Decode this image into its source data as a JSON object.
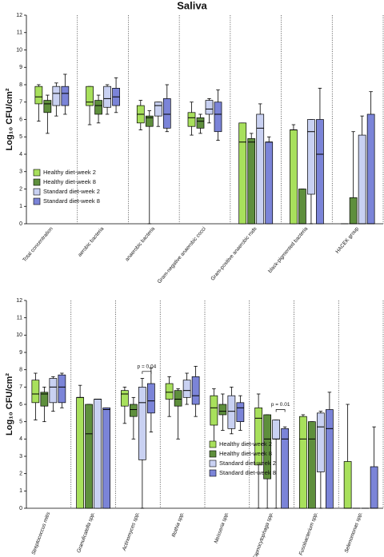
{
  "chart_data": [
    {
      "type": "box",
      "title": "Saliva",
      "y_label": "Log₁₀ CFU/cm²",
      "ylim": [
        0,
        12
      ],
      "yticks": [
        0,
        1,
        2,
        3,
        4,
        5,
        6,
        7,
        8,
        9,
        10,
        11,
        12
      ],
      "legend_position": "lower left",
      "italic_categories": false,
      "categories": [
        "Total concentration",
        "aerobic bacteria",
        "anaerobic bacteria",
        "Gram-negative anaerobic cocci",
        "Gram-positive anaerobic rods",
        "black-pigmented bacteria",
        "HACEK group"
      ],
      "series": [
        {
          "name": "Healthy diet-week 2",
          "color": "#a8e05c",
          "values": [
            {
              "min": 5.9,
              "q1": 6.9,
              "median": 7.3,
              "q3": 7.9,
              "max": 8.0
            },
            {
              "min": 5.7,
              "q1": 6.8,
              "median": 7.0,
              "q3": 7.9,
              "max": 7.9
            },
            {
              "min": 5.4,
              "q1": 5.8,
              "median": 6.3,
              "q3": 6.8,
              "max": 7.1
            },
            {
              "min": 5.1,
              "q1": 5.6,
              "median": 6.1,
              "q3": 6.4,
              "max": 7.0
            },
            {
              "min": 0,
              "q1": 0,
              "median": 4.7,
              "q3": 5.8,
              "max": 5.8
            },
            {
              "min": 0,
              "q1": 0,
              "median": 5.4,
              "q3": 5.4,
              "max": 5.7
            },
            {
              "min": 0,
              "q1": 0,
              "median": 0,
              "q3": 0,
              "max": 0
            }
          ]
        },
        {
          "name": "Healthy diet-week 8",
          "color": "#5e8f3c",
          "values": [
            {
              "min": 5.2,
              "q1": 6.4,
              "median": 6.9,
              "q3": 7.1,
              "max": 7.4
            },
            {
              "min": 5.8,
              "q1": 6.3,
              "median": 6.8,
              "q3": 7.1,
              "max": 7.4
            },
            {
              "min": 0,
              "q1": 5.6,
              "median": 6.1,
              "q3": 6.2,
              "max": 6.5
            },
            {
              "min": 5.2,
              "q1": 5.5,
              "median": 5.9,
              "q3": 6.1,
              "max": 6.3
            },
            {
              "min": 0,
              "q1": 0,
              "median": 4.7,
              "q3": 4.9,
              "max": 5.2
            },
            {
              "min": 0,
              "q1": 0,
              "median": 0,
              "q3": 2.0,
              "max": 2.0
            },
            {
              "min": 0,
              "q1": 0,
              "median": 0,
              "q3": 1.5,
              "max": 5.3
            }
          ]
        },
        {
          "name": "Standard diet-week 2",
          "color": "#c9d1f2",
          "values": [
            {
              "min": 6.2,
              "q1": 6.8,
              "median": 7.5,
              "q3": 7.9,
              "max": 8.1
            },
            {
              "min": 6.3,
              "q1": 6.7,
              "median": 7.2,
              "q3": 7.9,
              "max": 8.0
            },
            {
              "min": 5.6,
              "q1": 6.2,
              "median": 6.8,
              "q3": 7.0,
              "max": 7.0
            },
            {
              "min": 5.8,
              "q1": 6.3,
              "median": 6.6,
              "q3": 7.1,
              "max": 7.2
            },
            {
              "min": 0,
              "q1": 0,
              "median": 5.5,
              "q3": 6.3,
              "max": 6.9
            },
            {
              "min": 0,
              "q1": 1.7,
              "median": 5.3,
              "q3": 6.0,
              "max": 6.0
            },
            {
              "min": 0,
              "q1": 0,
              "median": 0,
              "q3": 5.1,
              "max": 6.2
            }
          ]
        },
        {
          "name": "Standard diet-week 8",
          "color": "#7b84d8",
          "values": [
            {
              "min": 6.3,
              "q1": 6.8,
              "median": 7.5,
              "q3": 7.9,
              "max": 8.6
            },
            {
              "min": 6.4,
              "q1": 6.8,
              "median": 7.3,
              "q3": 7.8,
              "max": 8.4
            },
            {
              "min": 5.3,
              "q1": 5.5,
              "median": 6.3,
              "q3": 7.2,
              "max": 8.0
            },
            {
              "min": 4.8,
              "q1": 5.3,
              "median": 6.3,
              "q3": 7.0,
              "max": 7.7
            },
            {
              "min": 0,
              "q1": 0,
              "median": 4.7,
              "q3": 4.7,
              "max": 5.0
            },
            {
              "min": 0,
              "q1": 0,
              "median": 4.0,
              "q3": 6.0,
              "max": 7.8
            },
            {
              "min": 0,
              "q1": 0,
              "median": 0,
              "q3": 6.3,
              "max": 7.6
            }
          ]
        }
      ]
    },
    {
      "type": "box",
      "y_label": "Log₁₀ CFU/cm²",
      "ylim": [
        0,
        12
      ],
      "yticks": [
        0,
        1,
        2,
        3,
        4,
        5,
        6,
        7,
        8,
        9,
        10,
        11,
        12
      ],
      "legend_position": "lower center",
      "italic_categories": true,
      "categories": [
        "Streptococcus mitis",
        "Granulicatella spp.",
        "Actinomyces spp.",
        "Rothia spp.",
        "Neisseria spp.",
        "Capnocytophaga spp.",
        "Fusobacterium spp.",
        "Selenomonas spp."
      ],
      "annotations": [
        {
          "text": "p = 0.04",
          "category": 2,
          "from": 2,
          "to": 3,
          "y": 7.9
        },
        {
          "text": "p = 0.01",
          "category": 5,
          "from": 2,
          "to": 3,
          "y": 5.7
        }
      ],
      "series": [
        {
          "name": "Healthy diet-week 2",
          "color": "#a8e05c",
          "values": [
            {
              "min": 5.1,
              "q1": 6.1,
              "median": 6.6,
              "q3": 7.4,
              "max": 7.8
            },
            {
              "min": 0,
              "q1": 0,
              "median": 6.4,
              "q3": 6.4,
              "max": 7.1
            },
            {
              "min": 4.9,
              "q1": 5.9,
              "median": 6.6,
              "q3": 6.8,
              "max": 7.0
            },
            {
              "min": 5.3,
              "q1": 6.3,
              "median": 6.7,
              "q3": 7.2,
              "max": 7.6
            },
            {
              "min": 3.8,
              "q1": 4.8,
              "median": 5.8,
              "q3": 6.5,
              "max": 6.9
            },
            {
              "min": 0,
              "q1": 2.5,
              "median": 5.2,
              "q3": 5.8,
              "max": 6.6
            },
            {
              "min": 0,
              "q1": 0,
              "median": 4.0,
              "q3": 5.3,
              "max": 5.4
            },
            {
              "min": 0,
              "q1": 0,
              "median": 0,
              "q3": 2.7,
              "max": 6.0
            }
          ]
        },
        {
          "name": "Healthy diet-week 8",
          "color": "#5e8f3c",
          "values": [
            {
              "min": 5.0,
              "q1": 5.9,
              "median": 6.6,
              "q3": 6.7,
              "max": 7.0
            },
            {
              "min": 0,
              "q1": 0,
              "median": 4.3,
              "q3": 6.0,
              "max": 6.0
            },
            {
              "min": 4.0,
              "q1": 5.3,
              "median": 5.7,
              "q3": 6.0,
              "max": 6.4
            },
            {
              "min": 4.0,
              "q1": 5.9,
              "median": 6.3,
              "q3": 6.8,
              "max": 6.9
            },
            {
              "min": 4.5,
              "q1": 5.4,
              "median": 5.6,
              "q3": 6.0,
              "max": 6.6
            },
            {
              "min": 0,
              "q1": 1.7,
              "median": 4.0,
              "q3": 5.4,
              "max": 5.4
            },
            {
              "min": 0,
              "q1": 0,
              "median": 4.0,
              "q3": 5.0,
              "max": 5.0
            },
            {
              "min": 0,
              "q1": 0,
              "median": 0,
              "q3": 0,
              "max": 0
            }
          ]
        },
        {
          "name": "Standard diet-week 2",
          "color": "#c9d1f2",
          "values": [
            {
              "min": 5.6,
              "q1": 6.1,
              "median": 7.0,
              "q3": 7.5,
              "max": 7.6
            },
            {
              "min": 0,
              "q1": 0,
              "median": 6.3,
              "q3": 6.3,
              "max": 6.3
            },
            {
              "min": 0,
              "q1": 2.8,
              "median": 6.1,
              "q3": 7.0,
              "max": 7.5
            },
            {
              "min": 6.0,
              "q1": 6.4,
              "median": 6.8,
              "q3": 7.4,
              "max": 7.8
            },
            {
              "min": 4.3,
              "q1": 4.6,
              "median": 5.6,
              "q3": 6.5,
              "max": 7.0
            },
            {
              "min": 0,
              "q1": 4.0,
              "median": 4.0,
              "q3": 5.1,
              "max": 5.1
            },
            {
              "min": 0,
              "q1": 2.1,
              "median": 4.7,
              "q3": 5.5,
              "max": 5.6
            },
            {
              "min": 0,
              "q1": 0,
              "median": 0,
              "q3": 0,
              "max": 0
            }
          ]
        },
        {
          "name": "Standard diet-week 8",
          "color": "#7b84d8",
          "values": [
            {
              "min": 5.8,
              "q1": 6.1,
              "median": 7.0,
              "q3": 7.7,
              "max": 7.8
            },
            {
              "min": 0,
              "q1": 0,
              "median": 5.7,
              "q3": 5.8,
              "max": 5.8
            },
            {
              "min": 4.4,
              "q1": 5.5,
              "median": 6.2,
              "q3": 7.2,
              "max": 8.1
            },
            {
              "min": 5.3,
              "q1": 6.0,
              "median": 6.5,
              "q3": 7.6,
              "max": 8.2
            },
            {
              "min": 4.5,
              "q1": 5.0,
              "median": 5.8,
              "q3": 6.1,
              "max": 6.5
            },
            {
              "min": 0,
              "q1": 0,
              "median": 4.0,
              "q3": 4.6,
              "max": 4.7
            },
            {
              "min": 0,
              "q1": 0,
              "median": 4.6,
              "q3": 5.7,
              "max": 6.7
            },
            {
              "min": 0,
              "q1": 0,
              "median": 0,
              "q3": 2.4,
              "max": 4.7
            }
          ]
        }
      ]
    }
  ]
}
